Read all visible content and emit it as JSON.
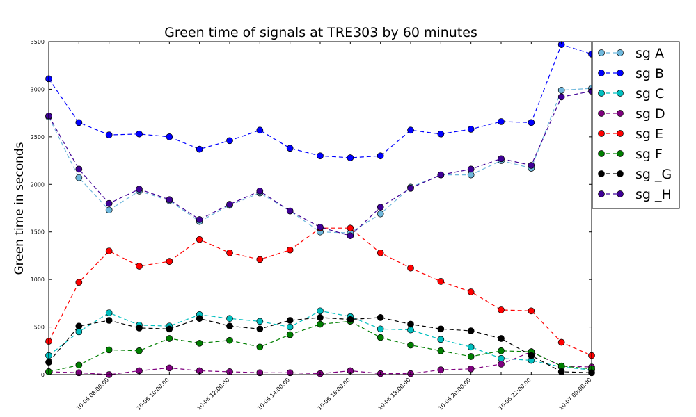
{
  "chart_data": {
    "type": "line",
    "title": "Green time of signals  at TRE303 by 60 minutes",
    "xlabel": "",
    "ylabel": "Green time in seconds",
    "ylim": [
      0,
      3500
    ],
    "yticks": [
      0,
      500,
      1000,
      1500,
      2000,
      2500,
      3000,
      3500
    ],
    "x": [
      "10-06 06:00",
      "10-06 07:00",
      "10-06 08:00",
      "10-06 09:00",
      "10-06 10:00",
      "10-06 11:00",
      "10-06 12:00",
      "10-06 13:00",
      "10-06 14:00",
      "10-06 15:00",
      "10-06 16:00",
      "10-06 17:00",
      "10-06 18:00",
      "10-06 19:00",
      "10-06 20:00",
      "10-06 21:00",
      "10-06 22:00",
      "10-06 23:00",
      "10-07 00:00"
    ],
    "xticks": [
      "10-06 08:00:00",
      "10-06 10:00:00",
      "10-06 12:00:00",
      "10-06 14:00:00",
      "10-06 16:00:00",
      "10-06 18:00:00",
      "10-06 20:00:00",
      "10-06 22:00:00",
      "10-07 00:00:00"
    ],
    "grid": false,
    "legend_position": "right",
    "series": [
      {
        "name": "sg A",
        "color": "#6fb8dc",
        "values": [
          2710,
          2070,
          1730,
          1930,
          1830,
          1610,
          1780,
          1910,
          1720,
          1500,
          1490,
          1690,
          1970,
          2100,
          2100,
          2250,
          2170,
          2990,
          3010
        ]
      },
      {
        "name": "sg B",
        "color": "#0000ff",
        "values": [
          3110,
          2650,
          2520,
          2530,
          2500,
          2370,
          2460,
          2570,
          2380,
          2300,
          2280,
          2300,
          2570,
          2530,
          2580,
          2660,
          2650,
          3470,
          3370
        ]
      },
      {
        "name": "sg C",
        "color": "#00bfbf",
        "values": [
          200,
          450,
          650,
          520,
          510,
          630,
          590,
          560,
          500,
          670,
          610,
          480,
          470,
          370,
          290,
          170,
          150,
          80,
          50
        ]
      },
      {
        "name": "sg D",
        "color": "#7f007f",
        "values": [
          30,
          20,
          0,
          40,
          70,
          40,
          30,
          20,
          20,
          10,
          40,
          10,
          10,
          50,
          60,
          110,
          240,
          90,
          80
        ]
      },
      {
        "name": "sg E",
        "color": "#ff0000",
        "values": [
          350,
          970,
          1300,
          1140,
          1190,
          1420,
          1280,
          1210,
          1310,
          1540,
          1540,
          1280,
          1120,
          980,
          870,
          680,
          670,
          340,
          200
        ]
      },
      {
        "name": "sg F",
        "color": "#007f00",
        "values": [
          30,
          100,
          260,
          250,
          380,
          330,
          360,
          290,
          420,
          530,
          560,
          390,
          310,
          250,
          190,
          250,
          240,
          90,
          60
        ]
      },
      {
        "name": "sg _G",
        "color": "#000000",
        "values": [
          130,
          510,
          570,
          490,
          480,
          590,
          510,
          480,
          570,
          600,
          580,
          600,
          530,
          480,
          460,
          380,
          200,
          30,
          20
        ]
      },
      {
        "name": "sg _H",
        "color": "#3f0096",
        "values": [
          2720,
          2160,
          1800,
          1950,
          1840,
          1630,
          1790,
          1930,
          1720,
          1550,
          1460,
          1760,
          1960,
          2100,
          2160,
          2270,
          2200,
          2920,
          2980
        ]
      }
    ]
  }
}
